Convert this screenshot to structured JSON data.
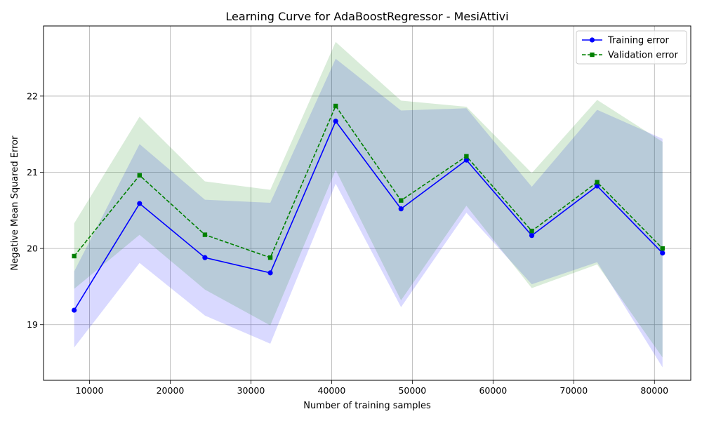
{
  "chart_data": {
    "type": "line",
    "title": "Learning Curve for AdaBoostRegressor - MesiAttivi",
    "xlabel": "Number of training samples",
    "ylabel": "Negative Mean Squared Error",
    "xlim": [
      4300,
      84500
    ],
    "ylim": [
      18.27,
      22.92
    ],
    "xticks": [
      10000,
      20000,
      30000,
      40000,
      50000,
      60000,
      70000,
      80000
    ],
    "yticks": [
      19,
      20,
      21,
      22
    ],
    "grid": true,
    "legend_position": "top-right",
    "x": [
      8100,
      16200,
      24300,
      32400,
      40500,
      48600,
      56700,
      64800,
      72900,
      81000
    ],
    "series": [
      {
        "name": "Training error",
        "color": "#0000ff",
        "marker": "circle",
        "linestyle": "solid",
        "values": [
          19.19,
          20.59,
          19.88,
          19.68,
          21.67,
          20.52,
          21.16,
          20.17,
          20.82,
          19.94
        ],
        "band_upper": [
          19.7,
          21.37,
          20.64,
          20.6,
          22.49,
          21.81,
          21.84,
          20.81,
          21.82,
          21.44
        ],
        "band_lower": [
          18.7,
          19.81,
          19.12,
          18.75,
          20.85,
          19.23,
          20.47,
          19.53,
          19.82,
          18.44
        ],
        "band_color": "#0000ff"
      },
      {
        "name": "Validation error",
        "color": "#008000",
        "marker": "square",
        "linestyle": "dashed",
        "values": [
          19.9,
          20.96,
          20.18,
          19.88,
          21.87,
          20.63,
          21.21,
          20.23,
          20.87,
          20.0
        ],
        "band_upper": [
          20.33,
          21.73,
          20.88,
          20.77,
          22.71,
          21.94,
          21.86,
          20.99,
          21.95,
          21.4
        ],
        "band_lower": [
          19.47,
          20.18,
          19.46,
          18.99,
          21.03,
          19.32,
          20.56,
          19.48,
          19.79,
          18.57
        ],
        "band_color": "#008000"
      }
    ]
  }
}
